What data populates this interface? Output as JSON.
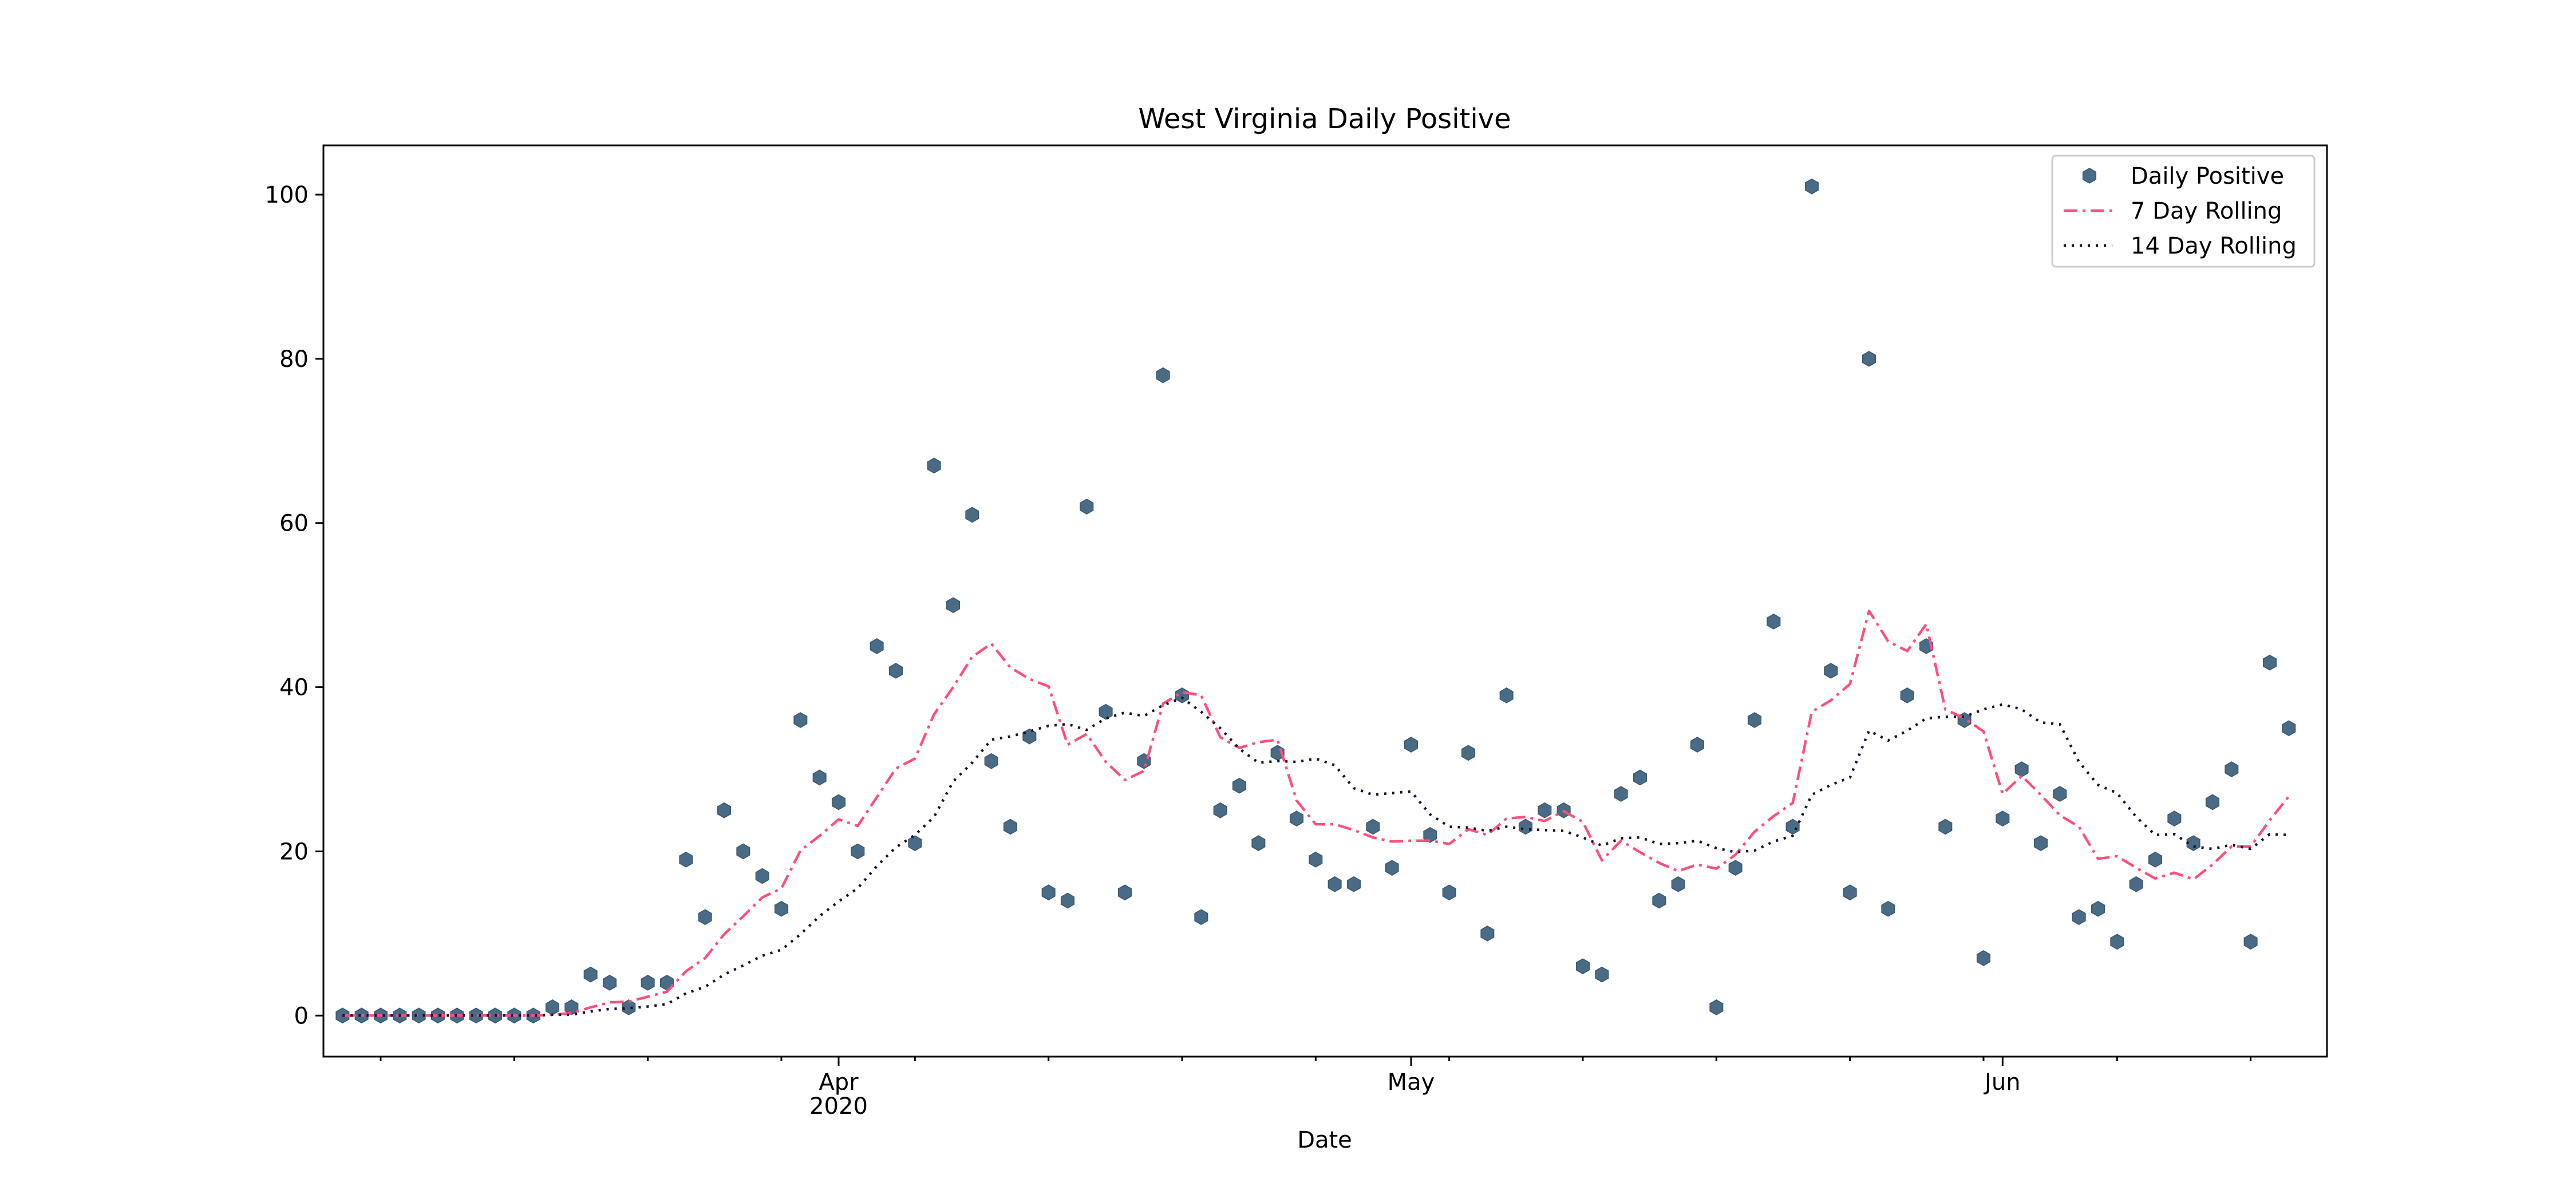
{
  "chart_data": {
    "type": "line",
    "title": "West Virginia Daily Positive",
    "xlabel": "Date",
    "ylabel": "",
    "ylim": [
      -5,
      106
    ],
    "xlim": [
      "2020-03-05",
      "2020-06-18"
    ],
    "x_ticks": [
      {
        "date": "2020-04-01",
        "label": "Apr",
        "sublabel": "2020"
      },
      {
        "date": "2020-05-01",
        "label": "May",
        "sublabel": ""
      },
      {
        "date": "2020-06-01",
        "label": "Jun",
        "sublabel": ""
      }
    ],
    "y_ticks": [
      0,
      20,
      40,
      60,
      80,
      100
    ],
    "grid": false,
    "legend_position": "top-right",
    "start_date": "2020-03-06",
    "series": [
      {
        "name": "Daily Positive",
        "style": "scatter-hexagon",
        "color": "#4a6b85",
        "values": [
          0,
          0,
          0,
          0,
          0,
          0,
          0,
          0,
          0,
          0,
          0,
          1,
          1,
          5,
          4,
          1,
          4,
          4,
          19,
          12,
          25,
          20,
          17,
          13,
          36,
          29,
          26,
          20,
          45,
          42,
          21,
          67,
          50,
          61,
          31,
          23,
          34,
          15,
          14,
          62,
          37,
          15,
          31,
          78,
          39,
          12,
          25,
          28,
          21,
          32,
          24,
          19,
          16,
          16,
          23,
          18,
          33,
          22,
          15,
          32,
          10,
          39,
          23,
          25,
          25,
          6,
          5,
          27,
          29,
          14,
          16,
          33,
          1,
          18,
          36,
          48,
          23,
          101,
          42,
          15,
          80,
          13,
          39,
          45,
          23,
          36,
          7,
          24,
          30,
          21,
          27,
          12,
          13,
          9,
          16,
          19,
          24,
          21,
          26,
          30,
          9,
          43,
          35
        ]
      },
      {
        "name": "7 Day Rolling",
        "style": "dashdot",
        "color": "#ff4f7b",
        "values": [
          0,
          0,
          0,
          0,
          0,
          0,
          0,
          0,
          0,
          0,
          0,
          0.1,
          0.3,
          1.0,
          1.6,
          1.7,
          2.3,
          2.9,
          5.4,
          7.0,
          9.9,
          12.1,
          14.4,
          15.5,
          20.1,
          21.9,
          23.9,
          23.1,
          26.6,
          30.1,
          31.3,
          36.7,
          40.0,
          43.7,
          45.3,
          42.4,
          41.0,
          40.1,
          33.0,
          34.3,
          30.9,
          28.7,
          29.8,
          38.0,
          39.4,
          39.0,
          33.9,
          32.6,
          33.3,
          33.6,
          26.2,
          23.3,
          23.3,
          22.6,
          21.7,
          21.2,
          21.3,
          21.3,
          20.9,
          22.7,
          22.0,
          24.0,
          24.2,
          23.7,
          24.9,
          23.6,
          18.9,
          21.3,
          19.9,
          18.6,
          17.6,
          18.4,
          17.9,
          19.6,
          22.4,
          24.3,
          25.9,
          37.0,
          38.4,
          40.4,
          49.3,
          45.6,
          44.4,
          47.7,
          37.3,
          36.2,
          34.6,
          27.0,
          29.2,
          26.9,
          24.4,
          23.0,
          19.1,
          19.4,
          18.0,
          16.7,
          17.4,
          16.6,
          18.4,
          20.6,
          20.6,
          23.8,
          26.7
        ]
      },
      {
        "name": "14 Day Rolling",
        "style": "dotted",
        "color": "#1a0f2e",
        "values": [
          0,
          0,
          0,
          0,
          0,
          0,
          0,
          0,
          0,
          0,
          0,
          0.1,
          0.1,
          0.5,
          0.8,
          0.9,
          1.1,
          1.4,
          2.7,
          3.5,
          5.0,
          6.1,
          7.3,
          8.0,
          9.9,
          12.1,
          13.9,
          15.5,
          18.2,
          20.5,
          22.0,
          24.2,
          28.5,
          30.8,
          33.6,
          34.0,
          34.6,
          35.3,
          35.5,
          34.8,
          36.2,
          36.9,
          36.5,
          37.8,
          38.7,
          37.0,
          35.0,
          32.5,
          30.8,
          31.0,
          30.9,
          31.3,
          30.5,
          27.7,
          26.9,
          27.1,
          27.3,
          24.5,
          23.0,
          22.9,
          22.5,
          23.0,
          22.7,
          22.6,
          22.5,
          21.7,
          20.7,
          21.6,
          21.7,
          20.9,
          21.0,
          21.3,
          20.4,
          19.9,
          20.1,
          21.2,
          21.9,
          26.9,
          28.1,
          29.0,
          34.7,
          33.5,
          34.7,
          36.2,
          36.4,
          36.4,
          37.3,
          37.9,
          37.3,
          35.7,
          35.5,
          30.9,
          28.1,
          27.1,
          24.2,
          22.0,
          22.1,
          20.6,
          20.3,
          20.8,
          20.3,
          22.1,
          22.0
        ]
      }
    ]
  }
}
